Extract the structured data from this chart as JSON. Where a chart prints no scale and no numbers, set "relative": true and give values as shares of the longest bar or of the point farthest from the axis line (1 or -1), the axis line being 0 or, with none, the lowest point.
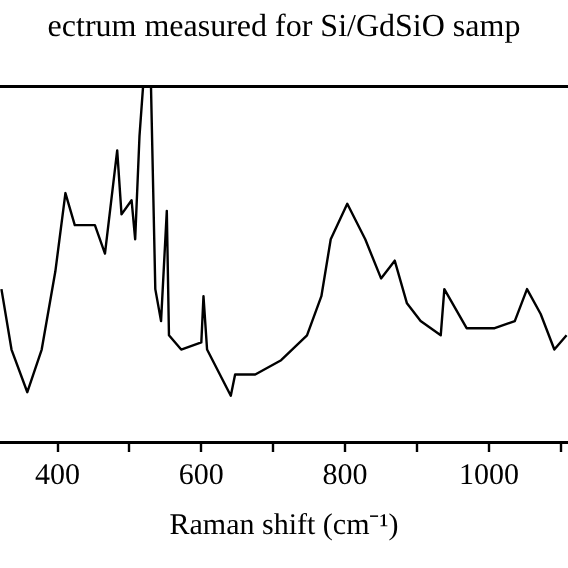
{
  "chart_data": {
    "type": "line",
    "title": "ectrum measured for Si/GdSiO samp",
    "xlabel": "Raman shift (cm⁻¹)",
    "relative": true,
    "color": "#000000",
    "marker": "none",
    "grid": false,
    "legend": false,
    "xlim": [
      320,
      1110
    ],
    "xticks": [
      400,
      {
        "value": 500,
        "label": null
      },
      600,
      {
        "value": 700,
        "label": null
      },
      800,
      {
        "value": 900,
        "label": null
      },
      1000,
      {
        "value": 1100,
        "label": null
      }
    ],
    "x": [
      322,
      336,
      358,
      378,
      397,
      411,
      424,
      452,
      466,
      483,
      489,
      503,
      508,
      514,
      519,
      530,
      536,
      544,
      552,
      555,
      572,
      600,
      603,
      608,
      641,
      647,
      675,
      711,
      747,
      767,
      780,
      803,
      828,
      850,
      869,
      886,
      905,
      933,
      938,
      969,
      1008,
      1036,
      1053,
      1072,
      1091,
      1108
    ],
    "values": [
      0.43,
      0.26,
      0.14,
      0.26,
      0.48,
      0.7,
      0.61,
      0.61,
      0.53,
      0.82,
      0.64,
      0.68,
      0.57,
      0.86,
      1.0,
      1.0,
      0.43,
      0.34,
      0.65,
      0.3,
      0.26,
      0.28,
      0.41,
      0.26,
      0.13,
      0.19,
      0.19,
      0.23,
      0.3,
      0.41,
      0.57,
      0.67,
      0.57,
      0.46,
      0.51,
      0.39,
      0.34,
      0.3,
      0.43,
      0.32,
      0.32,
      0.34,
      0.43,
      0.36,
      0.26,
      0.3
    ]
  }
}
